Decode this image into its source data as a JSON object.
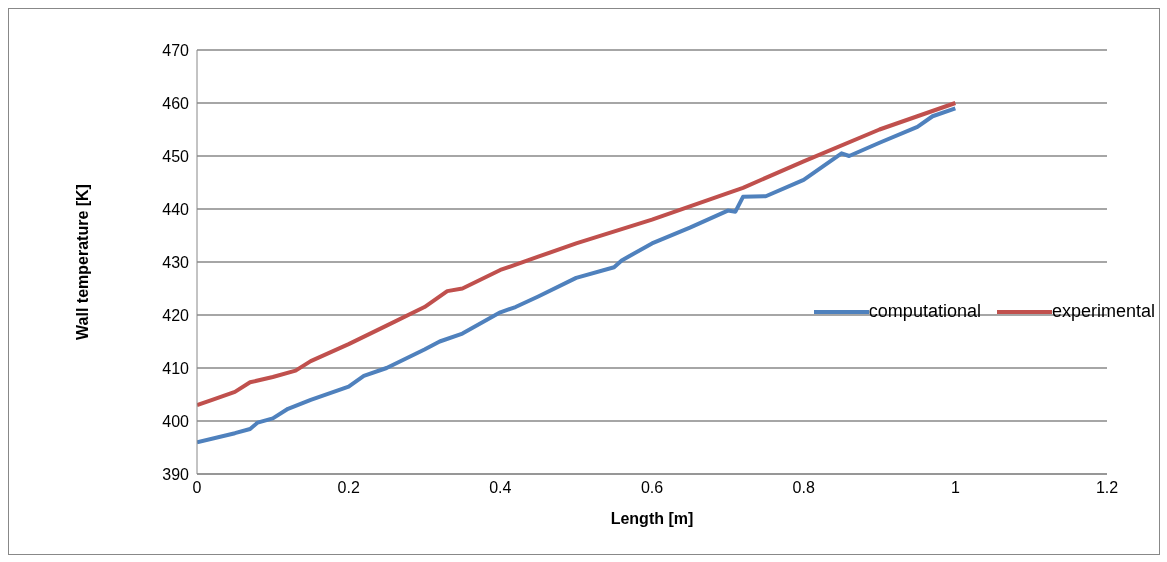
{
  "chart_data": {
    "type": "line",
    "xlabel": "Length [m]",
    "ylabel": "Wall temperature   [K]",
    "xlim": [
      0,
      1.2
    ],
    "xticks": [
      0,
      0.2,
      0.4,
      0.6,
      0.8,
      1,
      1.2
    ],
    "ylim": [
      390,
      470
    ],
    "yticks": [
      390,
      400,
      410,
      420,
      430,
      440,
      450,
      460,
      470
    ],
    "grid": "y",
    "legend": "right",
    "marker": "none",
    "line_style": "solid",
    "series": [
      {
        "name": "computational",
        "color": "#4f81bd",
        "x": [
          0,
          0.05,
          0.07,
          0.08,
          0.1,
          0.12,
          0.15,
          0.2,
          0.22,
          0.25,
          0.3,
          0.32,
          0.35,
          0.4,
          0.42,
          0.45,
          0.5,
          0.55,
          0.56,
          0.6,
          0.65,
          0.7,
          0.71,
          0.72,
          0.75,
          0.8,
          0.85,
          0.86,
          0.9,
          0.95,
          0.97,
          1.0
        ],
        "values": [
          396,
          397.7,
          398.5,
          399.7,
          400.5,
          402.3,
          404,
          406.5,
          408.5,
          410,
          413.5,
          415,
          416.5,
          420.5,
          421.5,
          423.5,
          427,
          429,
          430.3,
          433.5,
          436.5,
          439.7,
          439.5,
          442.3,
          442.4,
          445.5,
          450.5,
          450,
          452.5,
          455.5,
          457.5,
          459
        ]
      },
      {
        "name": "experimental",
        "color": "#c0504d",
        "x": [
          0,
          0.02,
          0.05,
          0.07,
          0.1,
          0.13,
          0.15,
          0.2,
          0.25,
          0.3,
          0.33,
          0.35,
          0.4,
          0.45,
          0.5,
          0.6,
          0.7,
          0.72,
          0.8,
          0.9,
          0.95,
          1.0
        ],
        "values": [
          403,
          404,
          405.5,
          407.3,
          408.3,
          409.5,
          411.3,
          414.5,
          418,
          421.5,
          424.5,
          425,
          428.5,
          431,
          433.5,
          438,
          443,
          444,
          449,
          455,
          457.5,
          460
        ]
      }
    ]
  }
}
